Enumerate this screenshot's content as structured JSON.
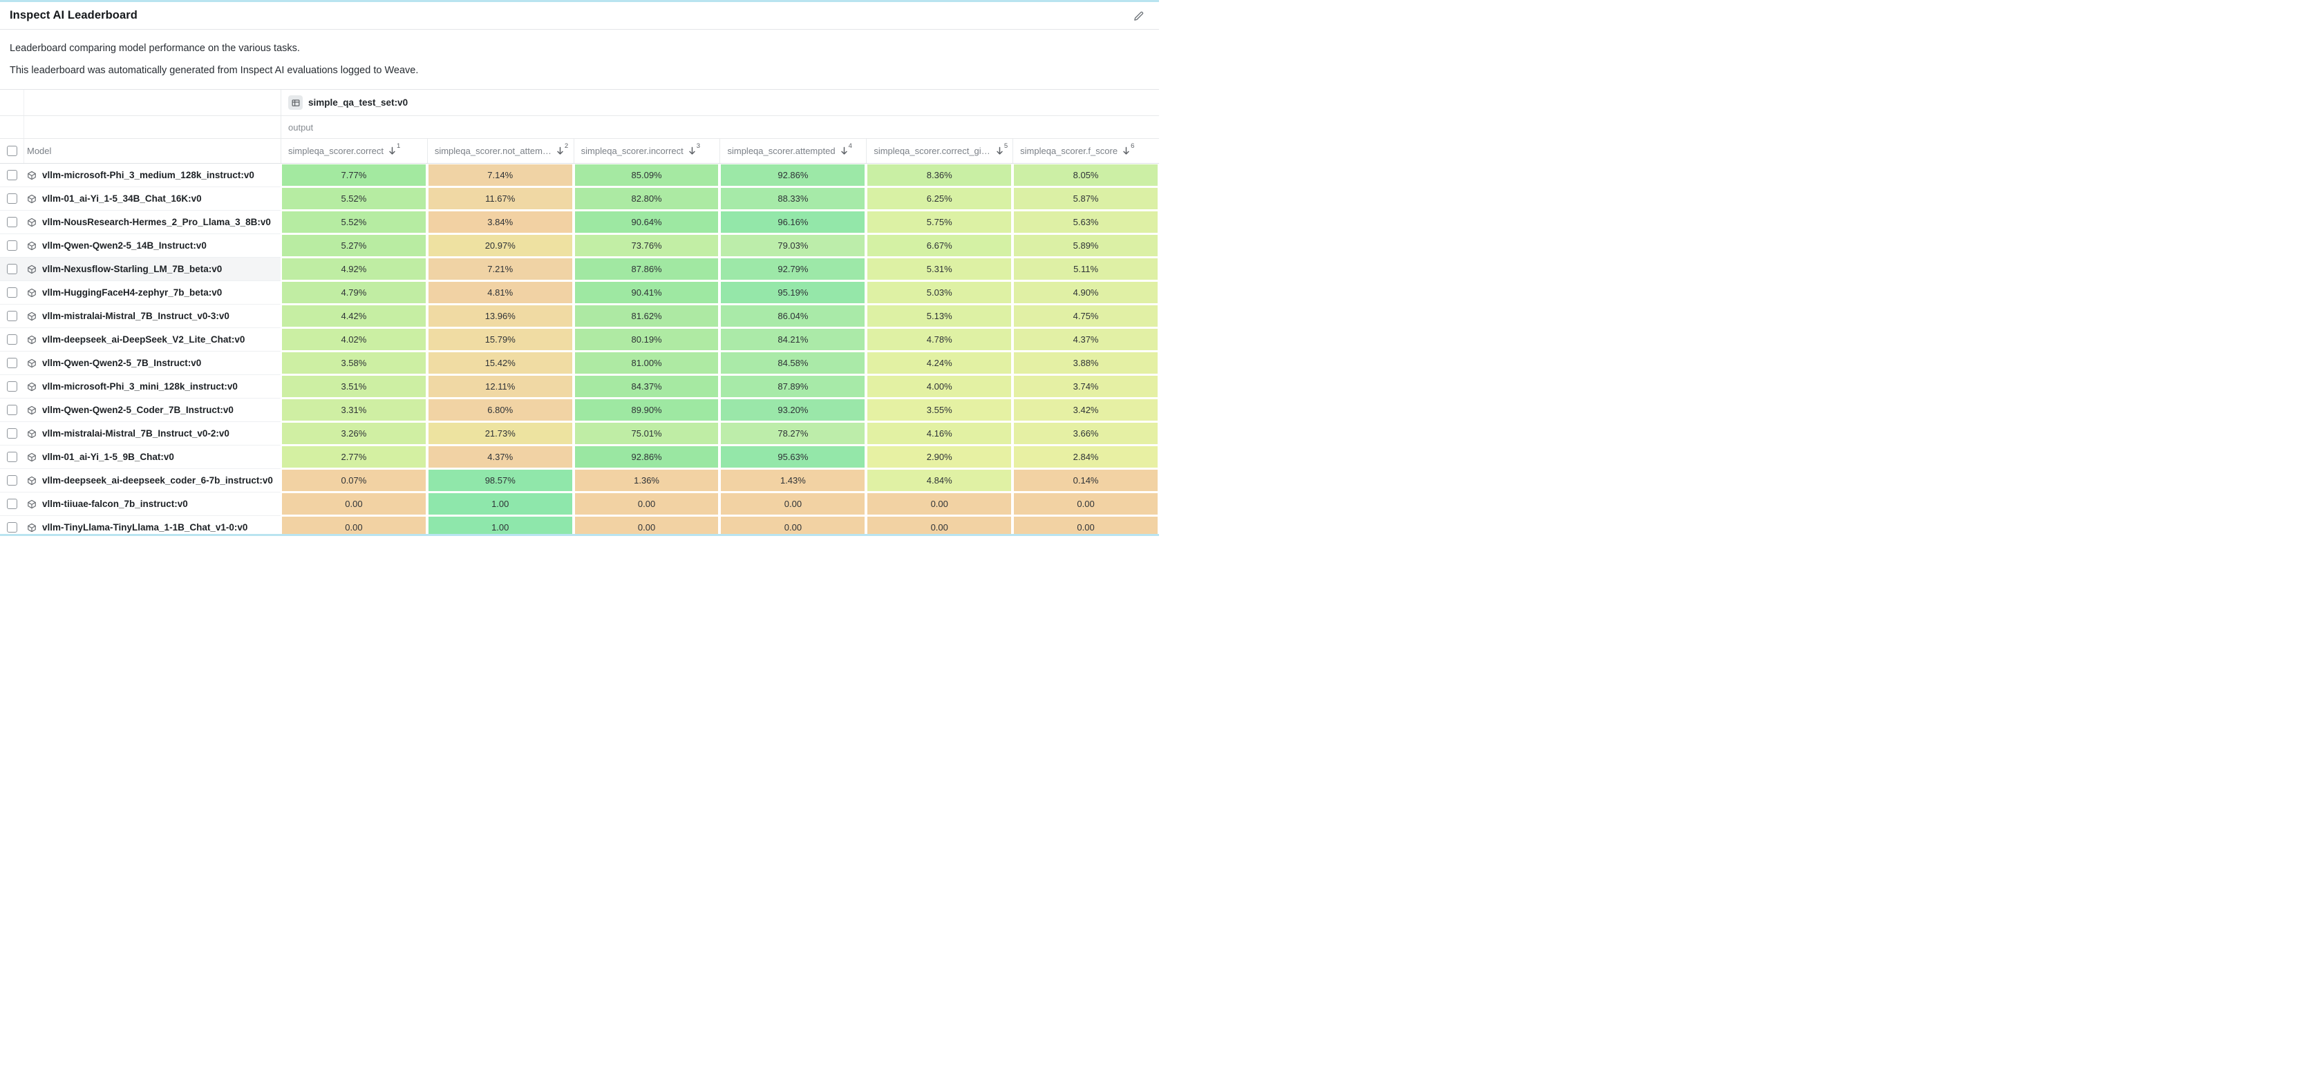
{
  "page": {
    "title": "Inspect AI Leaderboard",
    "description_line1": "Leaderboard comparing model performance on the various tasks.",
    "description_line2": "This leaderboard was automatically generated from Inspect AI evaluations logged to Weave."
  },
  "colors": {
    "accent_border": "#b9e4f0",
    "green_strong": "#8ee7ab",
    "green": "#a5e9a2",
    "yellow_green": "#d8f1a4",
    "tan": "#f2d2a3"
  },
  "table": {
    "dataset_group": "simple_qa_test_set:v0",
    "output_label": "output",
    "model_column_header": "Model",
    "highlighted_row_index": 4,
    "metric_columns": [
      {
        "label": "simpleqa_scorer.correct",
        "sort_order": "1"
      },
      {
        "label": "simpleqa_scorer.not_attem…",
        "sort_order": "2"
      },
      {
        "label": "simpleqa_scorer.incorrect",
        "sort_order": "3"
      },
      {
        "label": "simpleqa_scorer.attempted",
        "sort_order": "4"
      },
      {
        "label": "simpleqa_scorer.correct_giv…",
        "sort_order": "5"
      },
      {
        "label": "simpleqa_scorer.f_score",
        "sort_order": "6"
      }
    ],
    "rows": [
      {
        "model": "vllm-microsoft-Phi_3_medium_128k_instruct:v0",
        "cells": [
          {
            "v": "7.77%",
            "c": "#a3e9a0"
          },
          {
            "v": "7.14%",
            "c": "#f0d3a5"
          },
          {
            "v": "85.09%",
            "c": "#a5e9a2"
          },
          {
            "v": "92.86%",
            "c": "#9ce8a7"
          },
          {
            "v": "8.36%",
            "c": "#c9efa4"
          },
          {
            "v": "8.05%",
            "c": "#ccefa5"
          }
        ]
      },
      {
        "model": "vllm-01_ai-Yi_1-5_34B_Chat_16K:v0",
        "cells": [
          {
            "v": "5.52%",
            "c": "#b6eca2"
          },
          {
            "v": "11.67%",
            "c": "#f0d8a4"
          },
          {
            "v": "82.80%",
            "c": "#aceaa3"
          },
          {
            "v": "88.33%",
            "c": "#a6eaa8"
          },
          {
            "v": "6.25%",
            "c": "#d8f1a4"
          },
          {
            "v": "5.87%",
            "c": "#dbf0a5"
          }
        ]
      },
      {
        "model": "vllm-NousResearch-Hermes_2_Pro_Llama_3_8B:v0",
        "cells": [
          {
            "v": "5.52%",
            "c": "#b6eca2"
          },
          {
            "v": "3.84%",
            "c": "#f2d1a3"
          },
          {
            "v": "90.64%",
            "c": "#9de8a2"
          },
          {
            "v": "96.16%",
            "c": "#93e7a9"
          },
          {
            "v": "5.75%",
            "c": "#dcf1a4"
          },
          {
            "v": "5.63%",
            "c": "#def0a5"
          }
        ]
      },
      {
        "model": "vllm-Qwen-Qwen2-5_14B_Instruct:v0",
        "cells": [
          {
            "v": "5.27%",
            "c": "#b9eca2"
          },
          {
            "v": "20.97%",
            "c": "#eee1a1"
          },
          {
            "v": "73.76%",
            "c": "#c2eea5"
          },
          {
            "v": "79.03%",
            "c": "#bcedaa"
          },
          {
            "v": "6.67%",
            "c": "#d4f1a4"
          },
          {
            "v": "5.89%",
            "c": "#dbf0a5"
          }
        ]
      },
      {
        "model": "vllm-Nexusflow-Starling_LM_7B_beta:v0",
        "cells": [
          {
            "v": "4.92%",
            "c": "#bfeda3"
          },
          {
            "v": "7.21%",
            "c": "#f0d3a5"
          },
          {
            "v": "87.86%",
            "c": "#a1e8a2"
          },
          {
            "v": "92.79%",
            "c": "#9de8a8"
          },
          {
            "v": "5.31%",
            "c": "#ddf1a4"
          },
          {
            "v": "5.11%",
            "c": "#def0a5"
          }
        ]
      },
      {
        "model": "vllm-HuggingFaceH4-zephyr_7b_beta:v0",
        "cells": [
          {
            "v": "4.79%",
            "c": "#c1eda3"
          },
          {
            "v": "4.81%",
            "c": "#f1d2a4"
          },
          {
            "v": "90.41%",
            "c": "#9ee8a2"
          },
          {
            "v": "95.19%",
            "c": "#95e7a9"
          },
          {
            "v": "5.03%",
            "c": "#def1a4"
          },
          {
            "v": "4.90%",
            "c": "#e0f0a5"
          }
        ]
      },
      {
        "model": "vllm-mistralai-Mistral_7B_Instruct_v0-3:v0",
        "cells": [
          {
            "v": "4.42%",
            "c": "#c6eea3"
          },
          {
            "v": "13.96%",
            "c": "#f0daa3"
          },
          {
            "v": "81.62%",
            "c": "#ade9a3"
          },
          {
            "v": "86.04%",
            "c": "#a9eaa8"
          },
          {
            "v": "5.13%",
            "c": "#ddf1a4"
          },
          {
            "v": "4.75%",
            "c": "#e1f0a5"
          }
        ]
      },
      {
        "model": "vllm-deepseek_ai-DeepSeek_V2_Lite_Chat:v0",
        "cells": [
          {
            "v": "4.02%",
            "c": "#cbefa3"
          },
          {
            "v": "15.79%",
            "c": "#f0dca3"
          },
          {
            "v": "80.19%",
            "c": "#afeaa3"
          },
          {
            "v": "84.21%",
            "c": "#abeaa8"
          },
          {
            "v": "4.78%",
            "c": "#dff1a4"
          },
          {
            "v": "4.37%",
            "c": "#e2f0a5"
          }
        ]
      },
      {
        "model": "vllm-Qwen-Qwen2-5_7B_Instruct:v0",
        "cells": [
          {
            "v": "3.58%",
            "c": "#cdefa3"
          },
          {
            "v": "15.42%",
            "c": "#f0dca3"
          },
          {
            "v": "81.00%",
            "c": "#aeeaa3"
          },
          {
            "v": "84.58%",
            "c": "#aaeaa8"
          },
          {
            "v": "4.24%",
            "c": "#e2f1a3"
          },
          {
            "v": "3.88%",
            "c": "#e4f0a4"
          }
        ]
      },
      {
        "model": "vllm-microsoft-Phi_3_mini_128k_instruct:v0",
        "cells": [
          {
            "v": "3.51%",
            "c": "#cdefa3"
          },
          {
            "v": "12.11%",
            "c": "#f0d8a4"
          },
          {
            "v": "84.37%",
            "c": "#a6e9a2"
          },
          {
            "v": "87.89%",
            "c": "#a7eaa8"
          },
          {
            "v": "4.00%",
            "c": "#e3f1a3"
          },
          {
            "v": "3.74%",
            "c": "#e5f0a4"
          }
        ]
      },
      {
        "model": "vllm-Qwen-Qwen2-5_Coder_7B_Instruct:v0",
        "cells": [
          {
            "v": "3.31%",
            "c": "#cfefa3"
          },
          {
            "v": "6.80%",
            "c": "#f1d3a4"
          },
          {
            "v": "89.90%",
            "c": "#9ee8a2"
          },
          {
            "v": "93.20%",
            "c": "#9ae7a9"
          },
          {
            "v": "3.55%",
            "c": "#e5f1a3"
          },
          {
            "v": "3.42%",
            "c": "#e6f0a4"
          }
        ]
      },
      {
        "model": "vllm-mistralai-Mistral_7B_Instruct_v0-2:v0",
        "cells": [
          {
            "v": "3.26%",
            "c": "#d0efa3"
          },
          {
            "v": "21.73%",
            "c": "#ede3a0"
          },
          {
            "v": "75.01%",
            "c": "#bfeda5"
          },
          {
            "v": "78.27%",
            "c": "#bdedaa"
          },
          {
            "v": "4.16%",
            "c": "#e2f1a3"
          },
          {
            "v": "3.66%",
            "c": "#e5f0a4"
          }
        ]
      },
      {
        "model": "vllm-01_ai-Yi_1-5_9B_Chat:v0",
        "cells": [
          {
            "v": "2.77%",
            "c": "#d4f0a2"
          },
          {
            "v": "4.37%",
            "c": "#f1d2a4"
          },
          {
            "v": "92.86%",
            "c": "#9ae7a2"
          },
          {
            "v": "95.63%",
            "c": "#94e7a9"
          },
          {
            "v": "2.90%",
            "c": "#e7f1a3"
          },
          {
            "v": "2.84%",
            "c": "#e8f0a3"
          }
        ]
      },
      {
        "model": "vllm-deepseek_ai-deepseek_coder_6-7b_instruct:v0",
        "cells": [
          {
            "v": "0.07%",
            "c": "#f2d2a3"
          },
          {
            "v": "98.57%",
            "c": "#90e7aa"
          },
          {
            "v": "1.36%",
            "c": "#f2d2a3"
          },
          {
            "v": "1.43%",
            "c": "#f2d2a3"
          },
          {
            "v": "4.84%",
            "c": "#e0f1a4"
          },
          {
            "v": "0.14%",
            "c": "#f2d2a3"
          }
        ]
      },
      {
        "model": "vllm-tiiuae-falcon_7b_instruct:v0",
        "cells": [
          {
            "v": "0.00",
            "c": "#f2d2a3"
          },
          {
            "v": "1.00",
            "c": "#8ee7ab"
          },
          {
            "v": "0.00",
            "c": "#f2d2a3"
          },
          {
            "v": "0.00",
            "c": "#f2d2a3"
          },
          {
            "v": "0.00",
            "c": "#f2d2a3"
          },
          {
            "v": "0.00",
            "c": "#f2d2a3"
          }
        ]
      },
      {
        "model": "vllm-TinyLlama-TinyLlama_1-1B_Chat_v1-0:v0",
        "cells": [
          {
            "v": "0.00",
            "c": "#f2d2a3"
          },
          {
            "v": "1.00",
            "c": "#8ee7ab"
          },
          {
            "v": "0.00",
            "c": "#f2d2a3"
          },
          {
            "v": "0.00",
            "c": "#f2d2a3"
          },
          {
            "v": "0.00",
            "c": "#f2d2a3"
          },
          {
            "v": "0.00",
            "c": "#f2d2a3"
          }
        ]
      }
    ]
  }
}
